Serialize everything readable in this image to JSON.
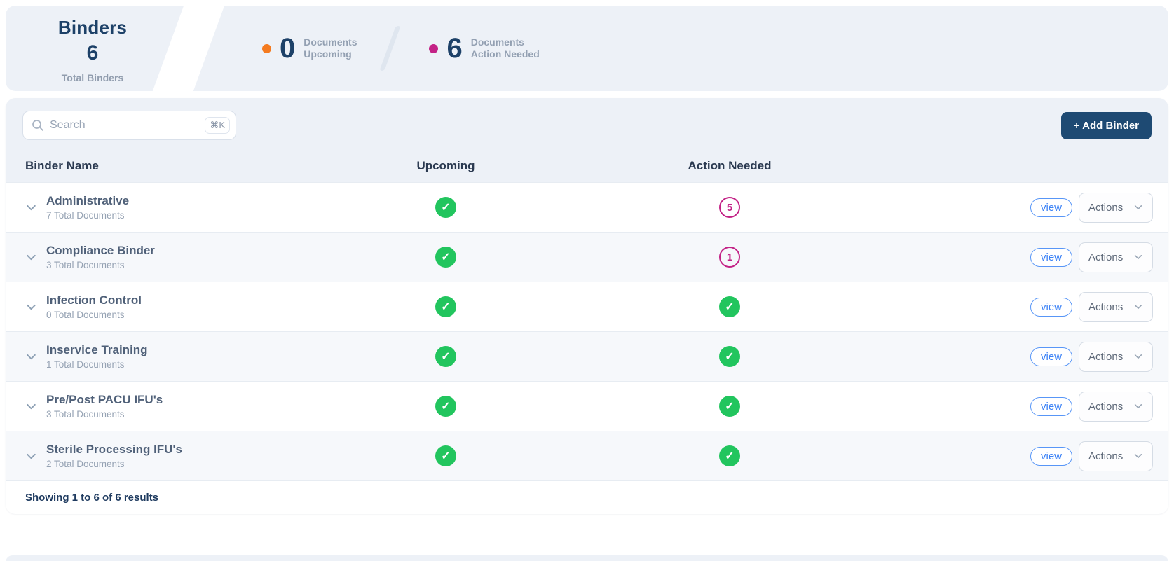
{
  "header": {
    "title": "Binders",
    "total_count": "6",
    "total_label": "Total Binders",
    "stats": [
      {
        "value": "0",
        "label_line1": "Documents",
        "label_line2": "Upcoming",
        "dot_color": "#f47b20"
      },
      {
        "value": "6",
        "label_line1": "Documents",
        "label_line2": "Action Needed",
        "dot_color": "#c32286"
      }
    ]
  },
  "toolbar": {
    "search_placeholder": "Search",
    "search_shortcut": "⌘K",
    "add_button_label": "+ Add Binder"
  },
  "table": {
    "columns": [
      "Binder Name",
      "Upcoming",
      "Action Needed"
    ],
    "rows": [
      {
        "name": "Administrative",
        "subtitle": "7 Total Documents",
        "upcoming": {
          "type": "check"
        },
        "action_needed": {
          "type": "count",
          "value": "5"
        },
        "view_label": "view",
        "actions_label": "Actions"
      },
      {
        "name": "Compliance Binder",
        "subtitle": "3 Total Documents",
        "upcoming": {
          "type": "check"
        },
        "action_needed": {
          "type": "count",
          "value": "1"
        },
        "view_label": "view",
        "actions_label": "Actions"
      },
      {
        "name": "Infection Control",
        "subtitle": "0 Total Documents",
        "upcoming": {
          "type": "check"
        },
        "action_needed": {
          "type": "check"
        },
        "view_label": "view",
        "actions_label": "Actions"
      },
      {
        "name": "Inservice Training",
        "subtitle": "1 Total Documents",
        "upcoming": {
          "type": "check"
        },
        "action_needed": {
          "type": "check"
        },
        "view_label": "view",
        "actions_label": "Actions"
      },
      {
        "name": "Pre/Post PACU IFU's",
        "subtitle": "3 Total Documents",
        "upcoming": {
          "type": "check"
        },
        "action_needed": {
          "type": "check"
        },
        "view_label": "view",
        "actions_label": "Actions"
      },
      {
        "name": "Sterile Processing IFU's",
        "subtitle": "2 Total Documents",
        "upcoming": {
          "type": "check"
        },
        "action_needed": {
          "type": "check"
        },
        "view_label": "view",
        "actions_label": "Actions"
      }
    ],
    "footer": "Showing 1 to 6 of 6 results"
  },
  "colors": {
    "navy": "#1d4168",
    "button_navy": "#1e4a73",
    "success_green": "#22c55e",
    "alert_magenta": "#c32286",
    "upcoming_orange": "#f47b20",
    "link_blue": "#3b82f6",
    "card_bg": "#edf1f7"
  }
}
